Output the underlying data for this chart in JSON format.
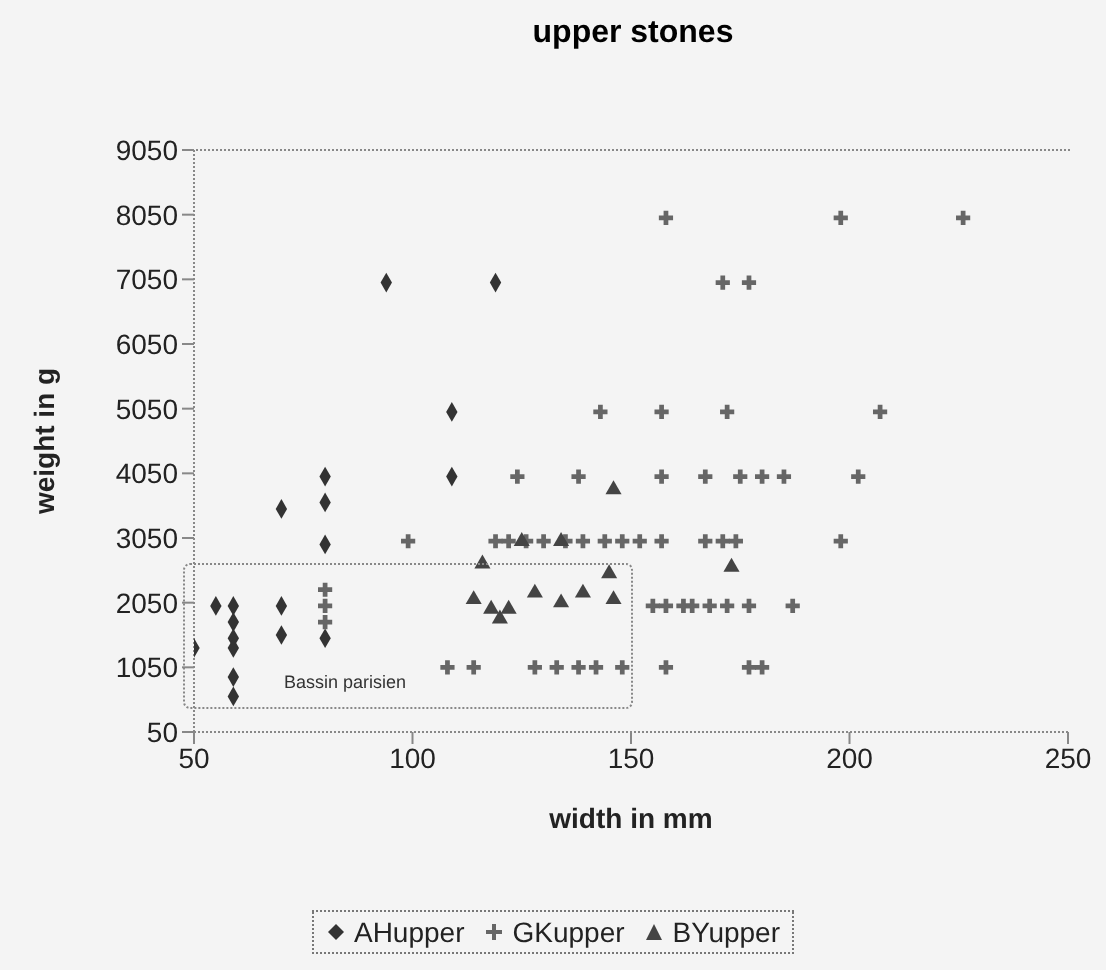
{
  "chart_data": {
    "type": "scatter",
    "title": "upper stones",
    "xlabel": "width in mm",
    "ylabel": "weight in g",
    "xlim": [
      50,
      250
    ],
    "xticks": [
      50,
      100,
      150,
      200,
      250
    ],
    "ylim": [
      50,
      9050
    ],
    "yticks": [
      50,
      1050,
      2050,
      3050,
      4050,
      5050,
      6050,
      7050,
      8050,
      9050
    ],
    "legend": "bottom",
    "annotations": [
      "Bassin parisien"
    ],
    "series": [
      {
        "name": "AHupper",
        "color": "#333333",
        "marker": "diamond",
        "x": [
          50,
          55,
          59,
          59,
          59,
          59,
          59,
          59,
          70,
          70,
          70,
          80,
          80,
          80,
          80,
          94,
          119,
          109,
          109
        ],
        "values": [
          1350,
          2000,
          2000,
          1750,
          1500,
          1350,
          900,
          600,
          2000,
          1550,
          3500,
          4000,
          3600,
          2950,
          1500,
          7000,
          7000,
          5000,
          4000
        ]
      },
      {
        "name": "GKupper",
        "color": "#666666",
        "marker": "cross",
        "x": [
          80,
          80,
          80,
          99,
          119,
          122,
          126,
          130,
          135,
          139,
          144,
          148,
          152,
          157,
          167,
          171,
          174,
          198,
          124,
          138,
          157,
          167,
          175,
          180,
          185,
          202,
          143,
          157,
          172,
          207,
          171,
          177,
          158,
          198,
          226,
          155,
          158,
          162,
          164,
          168,
          172,
          177,
          187,
          108,
          114,
          128,
          133,
          138,
          142,
          148,
          158,
          177,
          180
        ],
        "values": [
          2250,
          2000,
          1750,
          3000,
          3000,
          3000,
          3000,
          3000,
          3000,
          3000,
          3000,
          3000,
          3000,
          3000,
          3000,
          3000,
          3000,
          3000,
          4000,
          4000,
          4000,
          4000,
          4000,
          4000,
          4000,
          4000,
          5000,
          5000,
          5000,
          5000,
          7000,
          7000,
          8000,
          8000,
          8000,
          2000,
          2000,
          2000,
          2000,
          2000,
          2000,
          2000,
          2000,
          1050,
          1050,
          1050,
          1050,
          1050,
          1050,
          1050,
          1050,
          1050,
          1050
        ]
      },
      {
        "name": "BYupper",
        "color": "#444444",
        "marker": "triangle",
        "x": [
          114,
          116,
          118,
          120,
          122,
          125,
          128,
          134,
          134,
          139,
          145,
          146,
          146,
          173
        ],
        "values": [
          2100,
          2650,
          1950,
          1800,
          1950,
          3000,
          2200,
          2050,
          3000,
          2200,
          2500,
          2100,
          3800,
          2600
        ]
      }
    ]
  }
}
